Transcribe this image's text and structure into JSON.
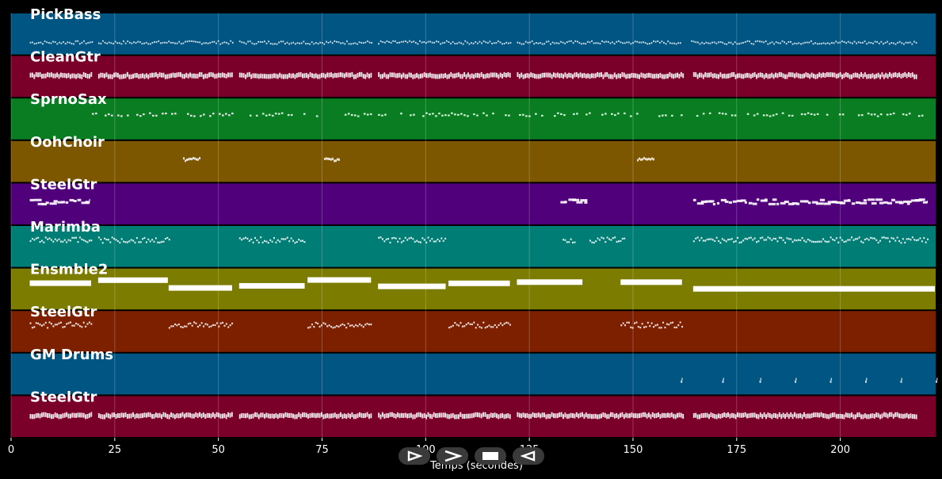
{
  "chart_data": {
    "type": "piano-roll",
    "xlabel": "Temps (secondes)",
    "xlim": [
      0,
      223
    ],
    "xticks": [
      0,
      25,
      50,
      75,
      100,
      125,
      150,
      175,
      200
    ],
    "tracks": [
      {
        "name": "PickBass",
        "color": "#015582",
        "style": "dense-small",
        "segments": [
          [
            4.5,
            19.5
          ],
          [
            21,
            53.5
          ],
          [
            55,
            87
          ],
          [
            88.5,
            120.5
          ],
          [
            122,
            124
          ],
          [
            124.5,
            161.5
          ],
          [
            164,
            218.5
          ]
        ]
      },
      {
        "name": "CleanGtr",
        "color": "#7b0029",
        "style": "dense-block",
        "segments": [
          [
            4.5,
            19.5
          ],
          [
            21,
            53.5
          ],
          [
            55,
            87
          ],
          [
            88.5,
            120.5
          ],
          [
            122,
            162
          ],
          [
            164.5,
            218.5
          ]
        ]
      },
      {
        "name": "SprnoSax",
        "color": "#0a7d22",
        "style": "sparse",
        "segments": [
          [
            19.5,
            53.5
          ],
          [
            57.5,
            87
          ],
          [
            88.5,
            120.5
          ],
          [
            122.5,
            162
          ],
          [
            164.5,
            220
          ]
        ]
      },
      {
        "name": "OohChoir",
        "color": "#7d5600",
        "style": "cluster",
        "segments": [
          [
            41.5,
            45.5
          ],
          [
            75.5,
            79
          ],
          [
            151,
            155
          ]
        ]
      },
      {
        "name": "SteelGtr",
        "color": "#4f007a",
        "style": "line",
        "segments": [
          [
            4.5,
            19
          ],
          [
            132.5,
            139
          ],
          [
            164.5,
            221
          ]
        ]
      },
      {
        "name": "Marimba",
        "color": "#007d74",
        "style": "phrases",
        "segments": [
          [
            4.5,
            19.5
          ],
          [
            21,
            38
          ],
          [
            55,
            71
          ],
          [
            88.5,
            105
          ],
          [
            133,
            136
          ],
          [
            139.5,
            148
          ],
          [
            164.5,
            221
          ]
        ]
      },
      {
        "name": "Ensmble2",
        "color": "#7c7c00",
        "style": "chord-steps",
        "segments": [
          [
            4.5,
            19.5
          ],
          [
            21,
            38
          ],
          [
            38,
            53.5
          ],
          [
            55,
            71
          ],
          [
            71.5,
            87
          ],
          [
            88.5,
            105
          ],
          [
            105.5,
            120.5
          ],
          [
            122,
            138
          ],
          [
            147,
            162
          ],
          [
            164.5,
            223
          ]
        ]
      },
      {
        "name": "SteelGtr",
        "color": "#7d2000",
        "style": "phrases",
        "segments": [
          [
            4.5,
            19.5
          ],
          [
            38,
            53.5
          ],
          [
            71.5,
            87
          ],
          [
            105.5,
            120.5
          ],
          [
            147,
            162
          ]
        ]
      },
      {
        "name": "GM Drums",
        "color": "#015582",
        "style": "hits",
        "hits": [
          161.5,
          171.5,
          180.5,
          189,
          197.5,
          206,
          214.5,
          223
        ]
      },
      {
        "name": "SteelGtr",
        "color": "#7b0029",
        "style": "dense-block",
        "segments": [
          [
            4.5,
            19.5
          ],
          [
            21,
            53.5
          ],
          [
            55,
            87
          ],
          [
            88.5,
            120.5
          ],
          [
            122,
            162
          ],
          [
            164.5,
            218.5
          ]
        ]
      }
    ]
  },
  "controls": [
    {
      "name": "play-button",
      "icon": "play-outline-icon"
    },
    {
      "name": "fast-forward-button",
      "icon": "chevron-right-icon"
    },
    {
      "name": "stop-button",
      "icon": "stop-icon"
    },
    {
      "name": "rewind-button",
      "icon": "play-reverse-icon"
    }
  ]
}
